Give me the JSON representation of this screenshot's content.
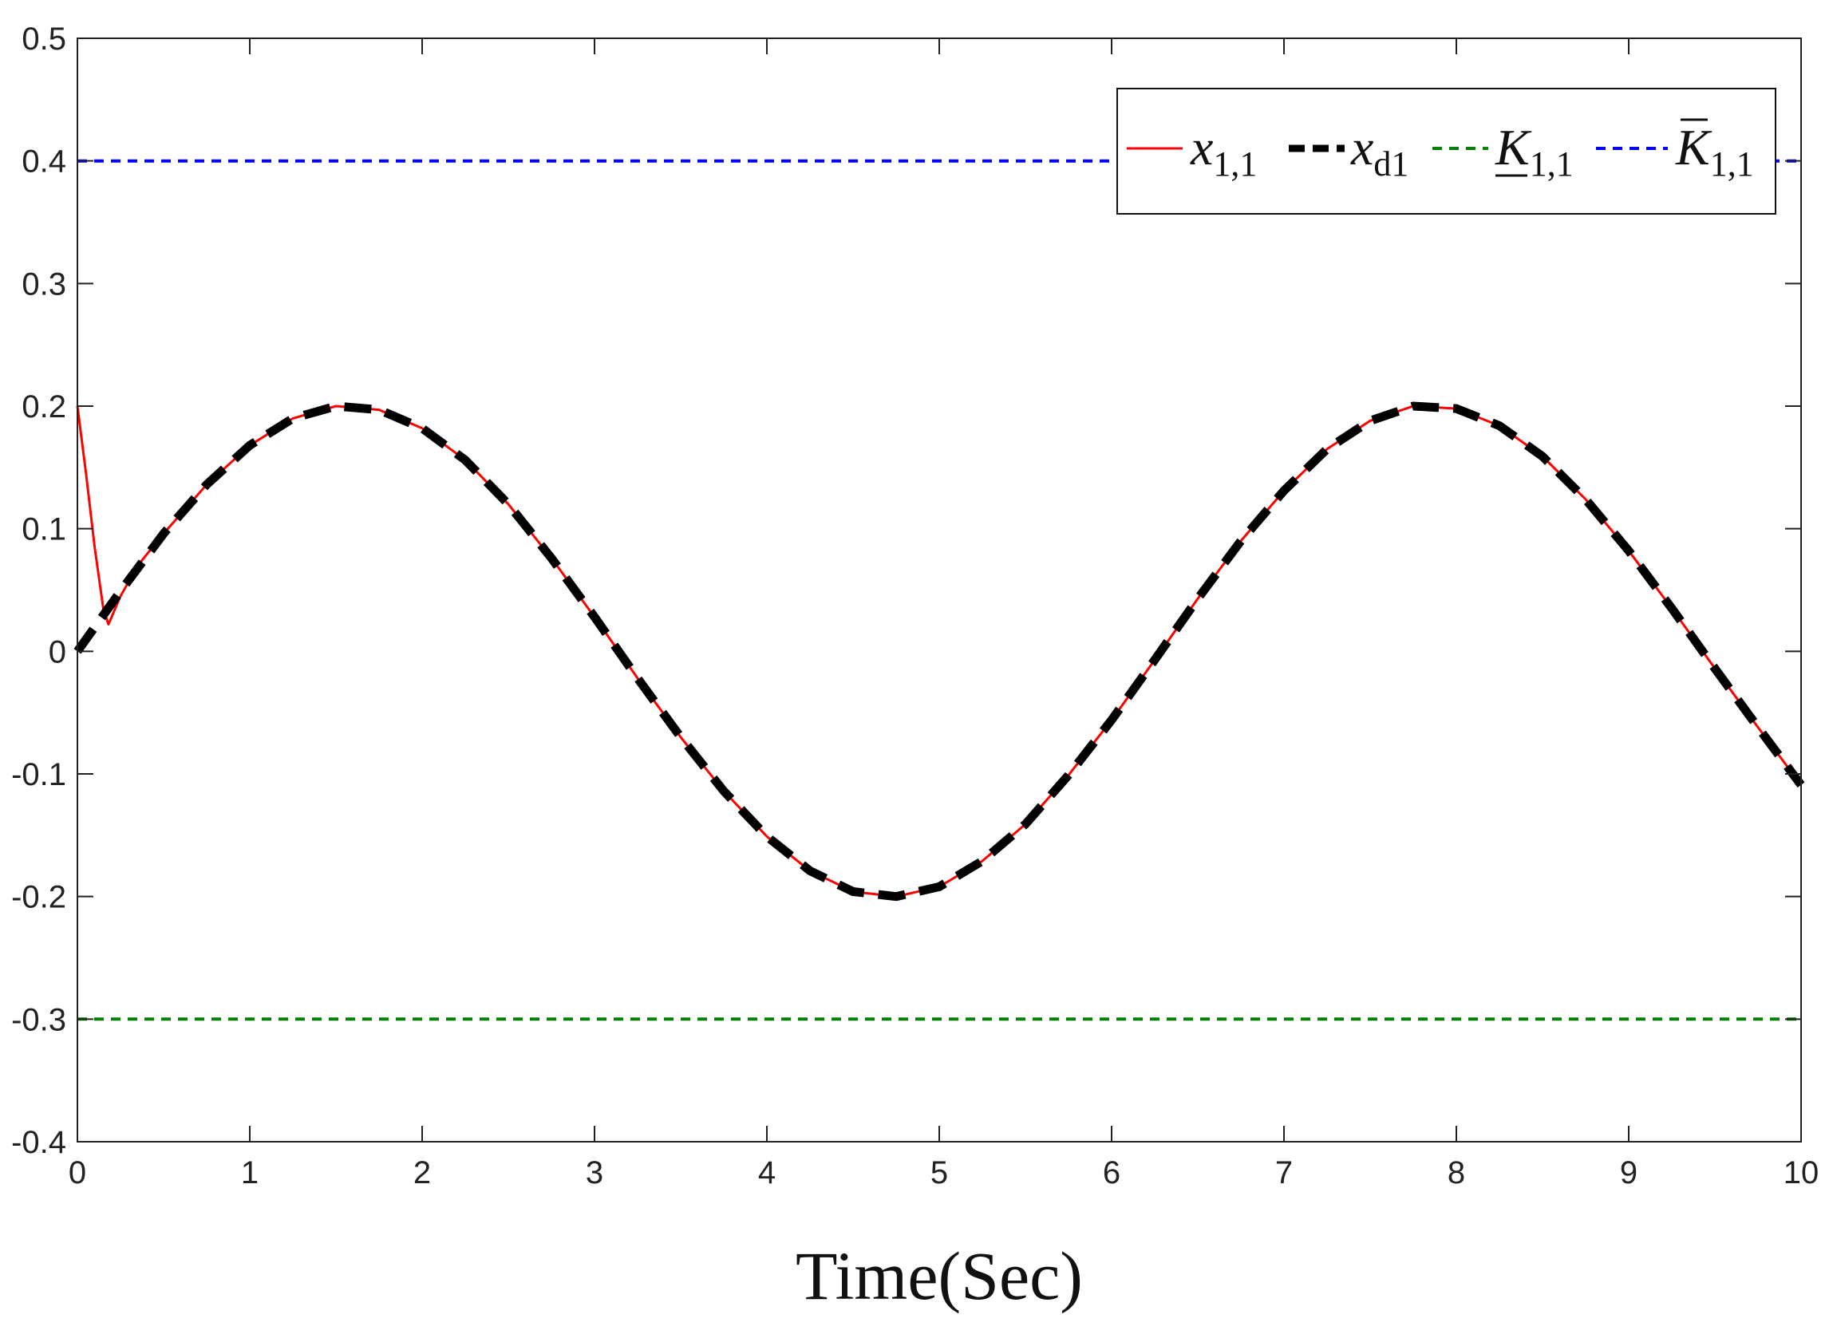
{
  "chart_data": {
    "type": "line",
    "xlabel": "Time(Sec)",
    "ylabel": "",
    "xlim": [
      0,
      10
    ],
    "ylim": [
      -0.4,
      0.5
    ],
    "x_ticks": [
      "0",
      "1",
      "2",
      "3",
      "4",
      "5",
      "6",
      "7",
      "8",
      "9",
      "10"
    ],
    "y_ticks": [
      "0.5",
      "0.4",
      "0.3",
      "0.2",
      "0.1",
      "0",
      "-0.1",
      "-0.2",
      "-0.3",
      "-0.4"
    ],
    "grid": false,
    "legend_position": "top-right",
    "series": [
      {
        "name": "x1,1",
        "name_main": "x",
        "name_sub": "1,1",
        "color": "#ff0000",
        "style": "solid",
        "x": [
          0,
          0.05,
          0.1,
          0.15,
          0.18,
          0.25,
          0.35,
          0.5,
          0.75,
          1.0,
          1.25,
          1.5,
          1.75,
          2.0,
          2.25,
          2.5,
          2.75,
          3.0,
          3.25,
          3.5,
          3.75,
          4.0,
          4.25,
          4.5,
          4.75,
          5.0,
          5.25,
          5.5,
          5.75,
          6.0,
          6.25,
          6.5,
          6.75,
          7.0,
          7.25,
          7.5,
          7.75,
          8.0,
          8.25,
          8.5,
          8.75,
          9.0,
          9.25,
          9.5,
          9.75,
          10.0
        ],
        "y": [
          0.2,
          0.145,
          0.085,
          0.035,
          0.022,
          0.045,
          0.07,
          0.096,
          0.136,
          0.168,
          0.19,
          0.2,
          0.197,
          0.182,
          0.156,
          0.12,
          0.076,
          0.028,
          -0.022,
          -0.07,
          -0.114,
          -0.151,
          -0.179,
          -0.196,
          -0.2,
          -0.192,
          -0.171,
          -0.141,
          -0.101,
          -0.056,
          -0.007,
          0.043,
          0.09,
          0.131,
          0.165,
          0.188,
          0.2,
          0.198,
          0.184,
          0.159,
          0.124,
          0.082,
          0.035,
          -0.014,
          -0.062,
          -0.109
        ]
      },
      {
        "name": "xd1",
        "name_main": "x",
        "name_sub": "d1",
        "color": "#000000",
        "style": "dashed",
        "x": [
          0,
          0.25,
          0.5,
          0.75,
          1.0,
          1.25,
          1.5,
          1.75,
          2.0,
          2.25,
          2.5,
          2.75,
          3.0,
          3.25,
          3.5,
          3.75,
          4.0,
          4.25,
          4.5,
          4.75,
          5.0,
          5.25,
          5.5,
          5.75,
          6.0,
          6.25,
          6.5,
          6.75,
          7.0,
          7.25,
          7.5,
          7.75,
          8.0,
          8.25,
          8.5,
          8.75,
          9.0,
          9.25,
          9.5,
          9.75,
          10.0
        ],
        "y": [
          0,
          0.049,
          0.096,
          0.136,
          0.168,
          0.19,
          0.2,
          0.197,
          0.182,
          0.156,
          0.12,
          0.076,
          0.028,
          -0.022,
          -0.07,
          -0.114,
          -0.151,
          -0.179,
          -0.196,
          -0.2,
          -0.192,
          -0.171,
          -0.141,
          -0.101,
          -0.056,
          -0.007,
          0.043,
          0.09,
          0.131,
          0.165,
          0.188,
          0.2,
          0.198,
          0.184,
          0.159,
          0.124,
          0.082,
          0.035,
          -0.014,
          -0.062,
          -0.109
        ]
      },
      {
        "name": "K1,1 (lower bound)",
        "name_main": "K",
        "name_sub": "1,1",
        "decoration": "underline",
        "color": "#008000",
        "style": "dotted",
        "x": [
          0,
          10
        ],
        "y": [
          -0.3,
          -0.3
        ]
      },
      {
        "name": "K1,1 (upper bound)",
        "name_main": "K",
        "name_sub": "1,1",
        "decoration": "overline",
        "color": "#0000ff",
        "style": "dotted",
        "x": [
          0,
          10
        ],
        "y": [
          0.4,
          0.4
        ]
      }
    ]
  }
}
